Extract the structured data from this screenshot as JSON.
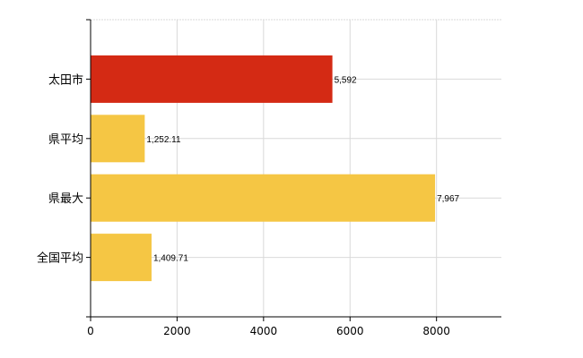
{
  "chart_data": {
    "type": "bar",
    "orientation": "horizontal",
    "categories": [
      "太田市",
      "県平均",
      "県最大",
      "全国平均"
    ],
    "values": [
      5592,
      1252.11,
      7967,
      1409.71
    ],
    "value_labels": [
      "5,592",
      "1,252.11",
      "7,967",
      "1,409.71"
    ],
    "bar_colors": [
      "#d42a14",
      "#f5c644",
      "#f5c644",
      "#f5c644"
    ],
    "xlim": [
      0,
      9500
    ],
    "x_ticks": [
      0,
      2000,
      4000,
      6000,
      8000
    ],
    "x_tick_labels": [
      "0",
      "2000",
      "4000",
      "6000",
      "8000"
    ],
    "grid": true,
    "grid_color": "#d9d9d9",
    "title": "",
    "xlabel": "",
    "ylabel": ""
  }
}
